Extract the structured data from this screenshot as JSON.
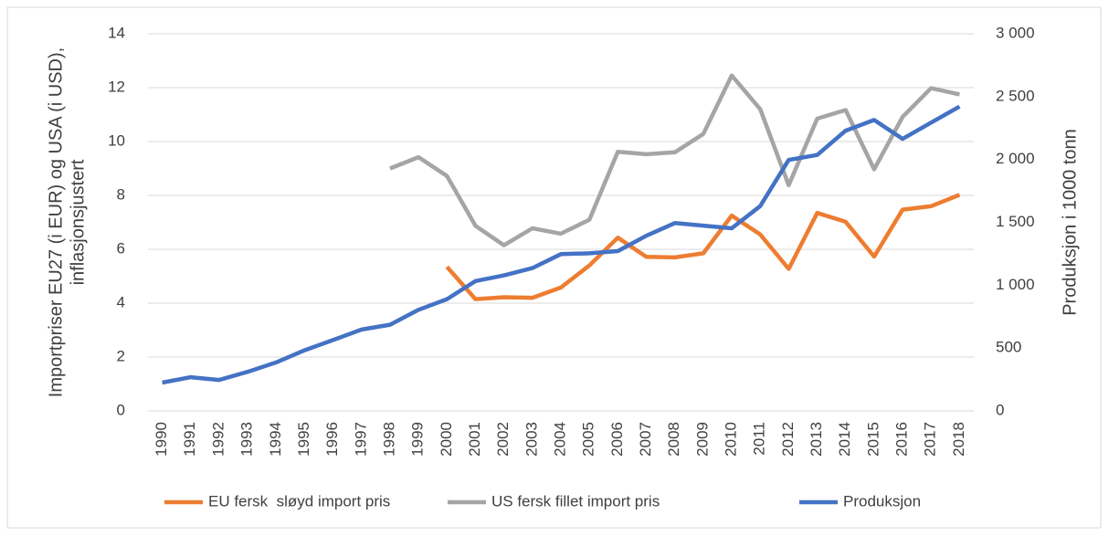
{
  "chart_data": {
    "type": "line",
    "y_label": [
      "Importpriser EU27 (i EUR) og USA (i USD),",
      "inflasjonsjustert"
    ],
    "y2_label": "Produksjon i 1000 tonn",
    "categories": [
      "1990",
      "1991",
      "1992",
      "1993",
      "1994",
      "1995",
      "1996",
      "1997",
      "1998",
      "1999",
      "2000",
      "2001",
      "2002",
      "2003",
      "2004",
      "2005",
      "2006",
      "2007",
      "2008",
      "2009",
      "2010",
      "2011",
      "2012",
      "2013",
      "2014",
      "2015",
      "2016",
      "2017",
      "2018"
    ],
    "series": [
      {
        "name": "EU fersk  sløyd import pris",
        "color": "#ed7d31",
        "values": [
          null,
          null,
          null,
          null,
          null,
          null,
          null,
          null,
          null,
          null,
          5.35,
          4.15,
          4.22,
          4.2,
          4.58,
          5.4,
          6.43,
          5.72,
          5.7,
          5.85,
          7.25,
          6.55,
          5.27,
          7.35,
          7.02,
          5.73,
          7.47,
          7.6,
          8.02
        ]
      },
      {
        "name": "US fersk fillet import pris",
        "color": "#a5a5a5",
        "values": [
          null,
          null,
          null,
          null,
          null,
          null,
          null,
          null,
          9.0,
          9.42,
          8.72,
          6.87,
          6.15,
          6.78,
          6.58,
          7.1,
          9.62,
          9.53,
          9.6,
          10.28,
          12.45,
          11.2,
          8.38,
          10.85,
          11.17,
          8.97,
          10.92,
          11.98,
          11.75
        ]
      },
      {
        "name": "Produksjon",
        "color": "#4472c4",
        "axis": "y2",
        "values": [
          225,
          268,
          246,
          311,
          386,
          482,
          564,
          647,
          686,
          804,
          889,
          1033,
          1078,
          1136,
          1247,
          1254,
          1271,
          1393,
          1494,
          1474,
          1453,
          1629,
          1997,
          2036,
          2229,
          2314,
          2164,
          2293,
          2421
        ]
      }
    ],
    "ylim": [
      0,
      14
    ],
    "yticks": [
      0,
      2,
      4,
      6,
      8,
      10,
      12,
      14
    ],
    "y2lim": [
      0,
      3000
    ],
    "y2ticks": [
      0,
      500,
      {
        "value": 1000,
        "label": "1 000"
      },
      {
        "value": 1500,
        "label": "1 500"
      },
      {
        "value": 2000,
        "label": "2 000"
      },
      {
        "value": 2500,
        "label": "2 500"
      },
      {
        "value": 3000,
        "label": "3 000"
      }
    ],
    "grid": true,
    "legend": "bottom"
  }
}
